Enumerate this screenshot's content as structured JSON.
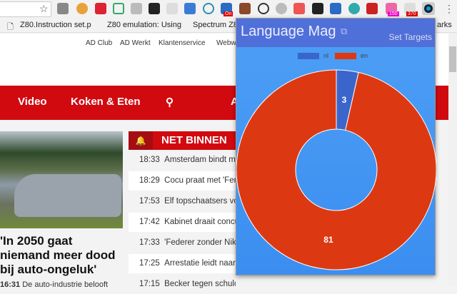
{
  "toolbar": {
    "badges": [
      "On",
      "150",
      "370"
    ]
  },
  "bookmarks": [
    "Z80.Instruction set.p",
    "Z80 emulation: Using",
    "Spectrum Z80",
    "arks"
  ],
  "topnav": [
    "AD Club",
    "AD Werkt",
    "Klantenservice",
    "Webwi"
  ],
  "rednav": [
    "Video",
    "Koken & Eten",
    "A"
  ],
  "article": {
    "headline": "'In 2050 gaat niemand meer dood bij auto-ongeluk'",
    "time": "16:31",
    "lead": "De auto-industrie belooft"
  },
  "net_binnen": {
    "title": "NET BINNEN",
    "items": [
      {
        "time": "18:33",
        "text": "Amsterdam bindt me"
      },
      {
        "time": "18:29",
        "text": "Cocu praat met 'Fen"
      },
      {
        "time": "17:53",
        "text": "Elf topschaatsers vo"
      },
      {
        "time": "17:42",
        "text": "Kabinet draait concu"
      },
      {
        "time": "17:33",
        "text": "'Federer zonder Nik"
      },
      {
        "time": "17:25",
        "text": "Arrestatie leidt naar"
      },
      {
        "time": "17:15",
        "text": "Becker tegen schuldeisers: Ik ben..."
      }
    ]
  },
  "popup": {
    "title": "Language Mag",
    "set_targets": "Set Targets"
  },
  "chart_data": {
    "type": "pie",
    "variant": "doughnut",
    "categories": [
      "nl",
      "en"
    ],
    "values": [
      3,
      81
    ],
    "colors": [
      "#3a66cc",
      "#dc3912"
    ],
    "legend": "top"
  }
}
